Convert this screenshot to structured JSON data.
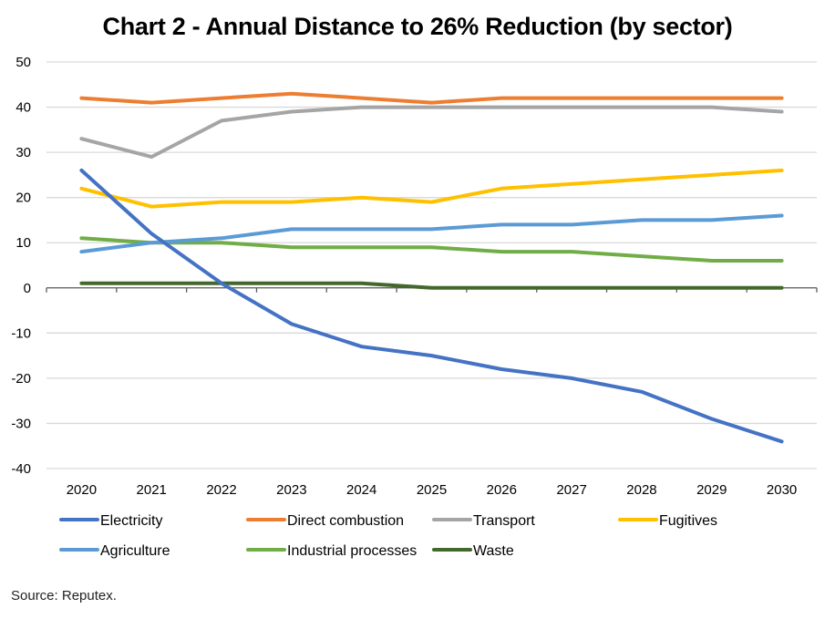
{
  "title": "Chart 2 - Annual Distance to 26% Reduction (by sector)",
  "source": "Source: Reputex.",
  "chart_data": {
    "type": "line",
    "title": "Chart 2 - Annual Distance to 26% Reduction (by sector)",
    "xlabel": "",
    "ylabel": "",
    "ylim": [
      -40,
      50
    ],
    "yticks": [
      50,
      40,
      30,
      20,
      10,
      0,
      -10,
      -20,
      -30,
      -40
    ],
    "grid": true,
    "legend_position": "bottom",
    "categories": [
      "2020",
      "2021",
      "2022",
      "2023",
      "2024",
      "2025",
      "2026",
      "2027",
      "2028",
      "2029",
      "2030"
    ],
    "series": [
      {
        "name": "Electricity",
        "color": "#4472C4",
        "values": [
          26,
          12,
          1,
          -8,
          -13,
          -15,
          -18,
          -20,
          -23,
          -29,
          -34
        ]
      },
      {
        "name": "Direct combustion",
        "color": "#ED7D31",
        "values": [
          42,
          41,
          42,
          43,
          42,
          41,
          42,
          42,
          42,
          42,
          42
        ]
      },
      {
        "name": "Transport",
        "color": "#A5A5A5",
        "values": [
          33,
          29,
          37,
          39,
          40,
          40,
          40,
          40,
          40,
          40,
          39
        ]
      },
      {
        "name": "Fugitives",
        "color": "#FFC000",
        "values": [
          22,
          18,
          19,
          19,
          20,
          19,
          22,
          23,
          24,
          25,
          26
        ]
      },
      {
        "name": "Agriculture",
        "color": "#5B9BD5",
        "values": [
          8,
          10,
          11,
          13,
          13,
          13,
          14,
          14,
          15,
          15,
          16
        ]
      },
      {
        "name": "Industrial processes",
        "color": "#70AD47",
        "values": [
          11,
          10,
          10,
          9,
          9,
          9,
          8,
          8,
          7,
          6,
          6
        ]
      },
      {
        "name": "Waste",
        "color": "#43682B",
        "values": [
          1,
          1,
          1,
          1,
          1,
          0,
          0,
          0,
          0,
          0,
          0
        ]
      }
    ]
  }
}
